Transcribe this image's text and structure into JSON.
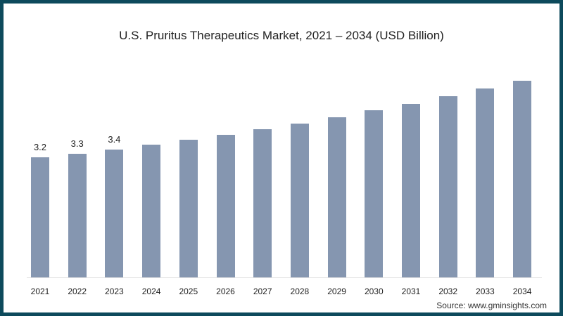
{
  "chart_data": {
    "type": "bar",
    "title": "U.S. Pruritus Therapeutics Market, 2021 – 2034 (USD Billion)",
    "xlabel": "",
    "ylabel": "",
    "categories": [
      "2021",
      "2022",
      "2023",
      "2024",
      "2025",
      "2026",
      "2027",
      "2028",
      "2029",
      "2030",
      "2031",
      "2032",
      "2033",
      "2034"
    ],
    "values": [
      3.2,
      3.3,
      3.4,
      3.54,
      3.67,
      3.8,
      3.95,
      4.1,
      4.27,
      4.46,
      4.63,
      4.83,
      5.04,
      5.24
    ],
    "data_labels": [
      "3.2",
      "3.3",
      "3.4",
      "",
      "",
      "",
      "",
      "",
      "",
      "",
      "",
      "",
      "",
      ""
    ],
    "ylim": [
      0,
      5.5
    ],
    "grid": false,
    "legend": "none",
    "bar_color": "#8596b0"
  },
  "source": "Source: www.gminsights.com",
  "colors": {
    "border": "#0d4a5c",
    "bar": "#8596b0"
  }
}
